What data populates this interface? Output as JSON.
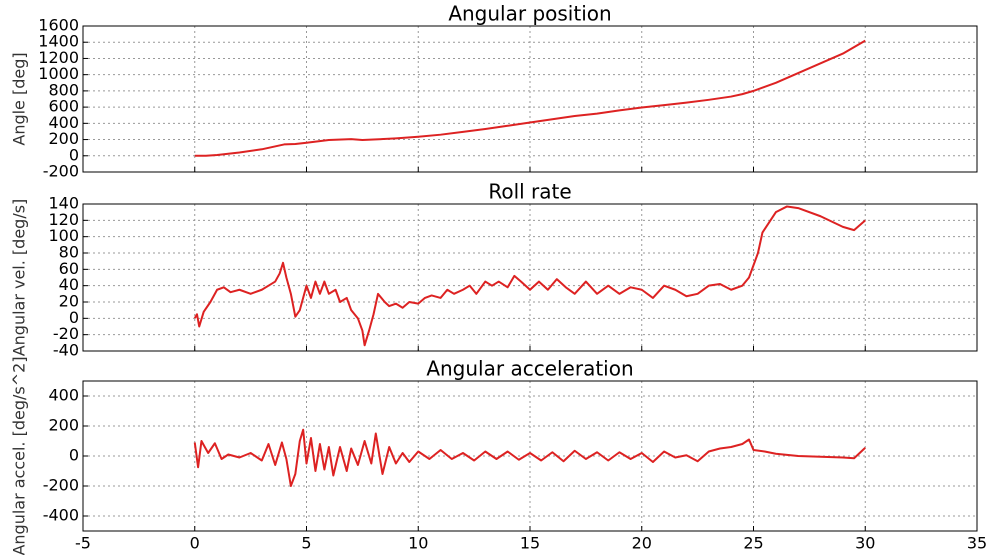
{
  "chart_data": [
    {
      "type": "line",
      "title": "Angular position",
      "ylabel": "Angle [deg]",
      "color": "#dd2222",
      "grid": true,
      "xtick_labels": false,
      "xlim": [
        -5,
        35
      ],
      "xticks": [
        -5,
        0,
        5,
        10,
        15,
        20,
        25,
        30,
        35
      ],
      "ylim": [
        -200,
        1600
      ],
      "yticks": [
        -200,
        0,
        200,
        400,
        600,
        800,
        1000,
        1200,
        1400,
        1600
      ],
      "x": [
        0,
        0.5,
        1,
        2,
        3,
        4,
        4.5,
        5,
        6,
        7,
        7.5,
        8,
        9,
        10,
        11,
        12,
        13,
        14,
        15,
        16,
        17,
        18,
        19,
        20,
        21,
        22,
        23,
        24,
        24.5,
        25,
        26,
        27,
        28,
        29,
        30
      ],
      "values": [
        0,
        0,
        10,
        40,
        80,
        140,
        145,
        160,
        195,
        205,
        195,
        200,
        215,
        235,
        260,
        295,
        330,
        370,
        410,
        450,
        490,
        520,
        560,
        595,
        625,
        655,
        690,
        730,
        760,
        800,
        900,
        1020,
        1140,
        1260,
        1420
      ]
    },
    {
      "type": "line",
      "title": "Roll rate",
      "ylabel": "Angular vel. [deg/s]",
      "color": "#dd2222",
      "grid": true,
      "xtick_labels": false,
      "xlim": [
        -5,
        35
      ],
      "xticks": [
        -5,
        0,
        5,
        10,
        15,
        20,
        25,
        30,
        35
      ],
      "ylim": [
        -40,
        140
      ],
      "yticks": [
        -40,
        -20,
        0,
        20,
        40,
        60,
        80,
        100,
        120,
        140
      ],
      "x": [
        0,
        0.1,
        0.2,
        0.4,
        0.7,
        1,
        1.3,
        1.6,
        2,
        2.5,
        3,
        3.3,
        3.6,
        3.8,
        3.95,
        4.1,
        4.3,
        4.5,
        4.7,
        5,
        5.2,
        5.4,
        5.6,
        5.8,
        6,
        6.3,
        6.5,
        6.8,
        7,
        7.3,
        7.5,
        7.6,
        7.8,
        8,
        8.2,
        8.5,
        8.7,
        9,
        9.3,
        9.6,
        10,
        10.3,
        10.6,
        11,
        11.3,
        11.6,
        12,
        12.3,
        12.6,
        13,
        13.3,
        13.6,
        14,
        14.3,
        14.6,
        15,
        15.4,
        15.8,
        16.2,
        16.6,
        17,
        17.5,
        18,
        18.5,
        19,
        19.5,
        20,
        20.5,
        21,
        21.5,
        22,
        22.5,
        23,
        23.5,
        24,
        24.5,
        24.8,
        25,
        25.2,
        25.4,
        26,
        26.5,
        27,
        28,
        29,
        29.5,
        30
      ],
      "values": [
        0,
        5,
        -10,
        8,
        20,
        35,
        38,
        32,
        35,
        30,
        35,
        40,
        45,
        55,
        68,
        50,
        30,
        2,
        10,
        40,
        25,
        45,
        30,
        45,
        30,
        35,
        20,
        25,
        10,
        0,
        -15,
        -33,
        -15,
        5,
        30,
        20,
        15,
        18,
        13,
        20,
        18,
        25,
        28,
        25,
        35,
        30,
        35,
        40,
        30,
        45,
        40,
        45,
        38,
        52,
        45,
        35,
        45,
        35,
        48,
        38,
        30,
        45,
        30,
        40,
        30,
        38,
        35,
        25,
        40,
        35,
        27,
        30,
        40,
        42,
        35,
        40,
        50,
        65,
        80,
        105,
        130,
        137,
        135,
        125,
        112,
        108,
        120
      ]
    },
    {
      "type": "line",
      "title": "Angular acceleration",
      "ylabel": "Angular accel. [deg/s^2]",
      "color": "#dd2222",
      "grid": true,
      "xtick_labels": true,
      "xlim": [
        -5,
        35
      ],
      "xticks": [
        -5,
        0,
        5,
        10,
        15,
        20,
        25,
        30,
        35
      ],
      "ylim": [
        -500,
        500
      ],
      "yticks": [
        -400,
        -200,
        0,
        200,
        400
      ],
      "x": [
        0,
        0.15,
        0.3,
        0.6,
        0.9,
        1.2,
        1.5,
        2,
        2.5,
        3,
        3.3,
        3.6,
        3.9,
        4.1,
        4.3,
        4.5,
        4.7,
        4.85,
        5,
        5.2,
        5.4,
        5.6,
        5.8,
        6,
        6.2,
        6.5,
        6.8,
        7,
        7.3,
        7.6,
        7.9,
        8.1,
        8.4,
        8.7,
        9,
        9.3,
        9.6,
        10,
        10.5,
        11,
        11.5,
        12,
        12.5,
        13,
        13.5,
        14,
        14.5,
        15,
        15.5,
        16,
        16.5,
        17,
        17.5,
        18,
        18.5,
        19,
        19.5,
        20,
        20.5,
        21,
        21.5,
        22,
        22.5,
        23,
        23.5,
        24,
        24.5,
        24.8,
        25,
        25.5,
        26,
        27,
        28,
        29,
        29.5,
        30
      ],
      "values": [
        90,
        -75,
        100,
        20,
        85,
        -20,
        10,
        -10,
        20,
        -30,
        80,
        -60,
        90,
        -20,
        -200,
        -120,
        100,
        175,
        -50,
        120,
        -100,
        80,
        -90,
        60,
        -130,
        60,
        -100,
        50,
        -60,
        100,
        -50,
        150,
        -120,
        60,
        -50,
        20,
        -40,
        30,
        -20,
        40,
        -20,
        20,
        -30,
        30,
        -20,
        30,
        -25,
        20,
        -30,
        25,
        -35,
        35,
        -20,
        25,
        -30,
        25,
        -20,
        20,
        -40,
        30,
        -10,
        5,
        -35,
        30,
        50,
        60,
        80,
        110,
        40,
        30,
        15,
        0,
        -5,
        -10,
        -15,
        55
      ]
    }
  ]
}
